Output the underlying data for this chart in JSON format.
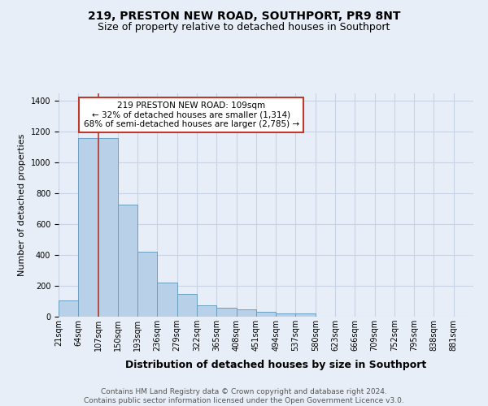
{
  "title": "219, PRESTON NEW ROAD, SOUTHPORT, PR9 8NT",
  "subtitle": "Size of property relative to detached houses in Southport",
  "xlabel": "Distribution of detached houses by size in Southport",
  "ylabel": "Number of detached properties",
  "bg_color": "#e8eef7",
  "bar_color": "#b8d0e8",
  "bar_edge_color": "#6a9fc0",
  "grid_color": "#c8d4e4",
  "bin_edges": [
    21,
    64,
    107,
    150,
    193,
    236,
    279,
    322,
    365,
    408,
    451,
    494,
    537,
    580,
    623,
    666,
    709,
    752,
    795,
    838,
    881
  ],
  "bar_heights": [
    107,
    1160,
    1160,
    730,
    420,
    220,
    150,
    75,
    60,
    50,
    30,
    20,
    20,
    0,
    0,
    0,
    0,
    0,
    0,
    0
  ],
  "x_tick_labels": [
    "21sqm",
    "64sqm",
    "107sqm",
    "150sqm",
    "193sqm",
    "236sqm",
    "279sqm",
    "322sqm",
    "365sqm",
    "408sqm",
    "451sqm",
    "494sqm",
    "537sqm",
    "580sqm",
    "623sqm",
    "666sqm",
    "709sqm",
    "752sqm",
    "795sqm",
    "838sqm",
    "881sqm"
  ],
  "vline_x": 107,
  "vline_color": "#c0392b",
  "annotation_text": "219 PRESTON NEW ROAD: 109sqm\n← 32% of detached houses are smaller (1,314)\n68% of semi-detached houses are larger (2,785) →",
  "annotation_box_color": "#ffffff",
  "annotation_border_color": "#c0392b",
  "ylim": [
    0,
    1450
  ],
  "yticks": [
    0,
    200,
    400,
    600,
    800,
    1000,
    1200,
    1400
  ],
  "footer_text": "Contains HM Land Registry data © Crown copyright and database right 2024.\nContains public sector information licensed under the Open Government Licence v3.0.",
  "title_fontsize": 10,
  "subtitle_fontsize": 9,
  "xlabel_fontsize": 9,
  "ylabel_fontsize": 8,
  "tick_fontsize": 7,
  "annotation_fontsize": 7.5,
  "footer_fontsize": 6.5
}
